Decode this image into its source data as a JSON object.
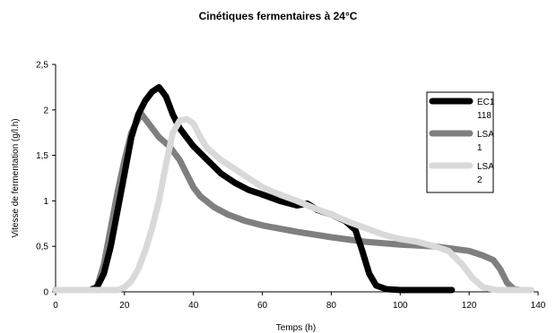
{
  "chart_data": {
    "type": "line",
    "title": "Cinétiques fermentaires à 24°C",
    "xlabel": "Temps (h)",
    "ylabel": "Vitesse de fermentation (g/l.h)",
    "xlim": [
      0,
      140
    ],
    "ylim": [
      0,
      2.5
    ],
    "x_ticks": [
      0,
      20,
      40,
      60,
      80,
      100,
      120,
      140
    ],
    "y_ticks": [
      0,
      0.5,
      1,
      1.5,
      2,
      2.5
    ],
    "x_tick_labels": [
      "0",
      "20",
      "40",
      "60",
      "80",
      "100",
      "120",
      "140"
    ],
    "y_tick_labels": [
      "0",
      "0,5",
      "1",
      "1,5",
      "2",
      "2,5"
    ],
    "grid": false,
    "legend_position": "right",
    "series": [
      {
        "name": "EC1 118",
        "legend_lines": [
          "EC1",
          "118"
        ],
        "color": "#000000",
        "points": [
          [
            0,
            0.02
          ],
          [
            10,
            0.02
          ],
          [
            12,
            0.05
          ],
          [
            14,
            0.2
          ],
          [
            16,
            0.5
          ],
          [
            18,
            0.9
          ],
          [
            20,
            1.3
          ],
          [
            22,
            1.7
          ],
          [
            24,
            1.95
          ],
          [
            26,
            2.1
          ],
          [
            28,
            2.2
          ],
          [
            30,
            2.25
          ],
          [
            32,
            2.15
          ],
          [
            34,
            1.95
          ],
          [
            36,
            1.8
          ],
          [
            38,
            1.7
          ],
          [
            40,
            1.6
          ],
          [
            44,
            1.45
          ],
          [
            48,
            1.3
          ],
          [
            52,
            1.2
          ],
          [
            56,
            1.12
          ],
          [
            60,
            1.07
          ],
          [
            65,
            1.0
          ],
          [
            70,
            0.95
          ],
          [
            73,
            0.97
          ],
          [
            76,
            0.9
          ],
          [
            80,
            0.85
          ],
          [
            84,
            0.78
          ],
          [
            87,
            0.68
          ],
          [
            89,
            0.45
          ],
          [
            91,
            0.2
          ],
          [
            93,
            0.07
          ],
          [
            96,
            0.03
          ],
          [
            100,
            0.02
          ],
          [
            110,
            0.02
          ],
          [
            115,
            0.02
          ]
        ]
      },
      {
        "name": "LSA 1",
        "legend_lines": [
          "LSA",
          "1"
        ],
        "color": "#7f7f7f",
        "points": [
          [
            0,
            0.02
          ],
          [
            10,
            0.02
          ],
          [
            12,
            0.05
          ],
          [
            14,
            0.3
          ],
          [
            16,
            0.7
          ],
          [
            18,
            1.1
          ],
          [
            20,
            1.45
          ],
          [
            22,
            1.75
          ],
          [
            24,
            1.9
          ],
          [
            25,
            1.95
          ],
          [
            27,
            1.85
          ],
          [
            30,
            1.7
          ],
          [
            33,
            1.6
          ],
          [
            36,
            1.45
          ],
          [
            38,
            1.3
          ],
          [
            40,
            1.15
          ],
          [
            42,
            1.05
          ],
          [
            46,
            0.93
          ],
          [
            50,
            0.85
          ],
          [
            55,
            0.78
          ],
          [
            60,
            0.73
          ],
          [
            70,
            0.66
          ],
          [
            80,
            0.6
          ],
          [
            90,
            0.55
          ],
          [
            100,
            0.52
          ],
          [
            110,
            0.5
          ],
          [
            120,
            0.45
          ],
          [
            124,
            0.4
          ],
          [
            127,
            0.35
          ],
          [
            129,
            0.25
          ],
          [
            131,
            0.1
          ],
          [
            133,
            0.03
          ],
          [
            135,
            0.02
          ]
        ]
      },
      {
        "name": "LSA 2",
        "legend_lines": [
          "LSA",
          "2"
        ],
        "color": "#d9d9d9",
        "points": [
          [
            0,
            0.02
          ],
          [
            18,
            0.02
          ],
          [
            20,
            0.05
          ],
          [
            22,
            0.12
          ],
          [
            24,
            0.25
          ],
          [
            26,
            0.45
          ],
          [
            28,
            0.7
          ],
          [
            30,
            1.0
          ],
          [
            32,
            1.4
          ],
          [
            34,
            1.75
          ],
          [
            36,
            1.88
          ],
          [
            38,
            1.9
          ],
          [
            40,
            1.85
          ],
          [
            42,
            1.7
          ],
          [
            44,
            1.58
          ],
          [
            48,
            1.45
          ],
          [
            52,
            1.35
          ],
          [
            56,
            1.25
          ],
          [
            60,
            1.15
          ],
          [
            65,
            1.07
          ],
          [
            70,
            1.0
          ],
          [
            75,
            0.92
          ],
          [
            80,
            0.85
          ],
          [
            85,
            0.77
          ],
          [
            90,
            0.7
          ],
          [
            95,
            0.63
          ],
          [
            100,
            0.58
          ],
          [
            105,
            0.55
          ],
          [
            110,
            0.5
          ],
          [
            114,
            0.45
          ],
          [
            118,
            0.3
          ],
          [
            121,
            0.15
          ],
          [
            124,
            0.05
          ],
          [
            128,
            0.02
          ],
          [
            138,
            0.02
          ]
        ]
      }
    ]
  }
}
